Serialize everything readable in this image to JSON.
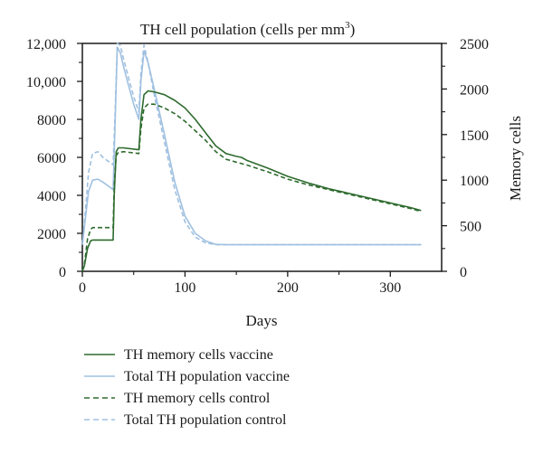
{
  "chart_data": {
    "type": "line",
    "title": "TH cell population (cells per mm",
    "title_superscript": "3",
    "title_suffix": ")",
    "xlabel": "Days",
    "ylabel_left": "",
    "ylabel_right": "Memory cells",
    "xlim": [
      0,
      350
    ],
    "ylim_left": [
      0,
      12000
    ],
    "ylim_right": [
      0,
      2500
    ],
    "x_ticks": [
      0,
      100,
      200,
      300
    ],
    "x_tick_labels": [
      "0",
      "100",
      "200",
      "300"
    ],
    "y_left_ticks": [
      0,
      2000,
      4000,
      6000,
      8000,
      10000,
      12000
    ],
    "y_left_tick_labels": [
      "0",
      "2000",
      "4000",
      "6000",
      "8000",
      "10,000",
      "12,000"
    ],
    "y_right_ticks": [
      0,
      500,
      1000,
      1500,
      2000,
      2500
    ],
    "y_right_tick_labels": [
      "0",
      "500",
      "1000",
      "1500",
      "2000",
      "2500"
    ],
    "grid": false,
    "legend_position": "bottom",
    "series": [
      {
        "name": "TH memory cells vaccine",
        "axis": "left",
        "color": "#2e6b2e",
        "dash": "solid",
        "x": [
          0,
          2,
          5,
          8,
          10,
          30,
          31,
          33,
          35,
          40,
          55,
          57,
          60,
          64,
          70,
          80,
          90,
          100,
          110,
          120,
          130,
          140,
          150,
          155,
          160,
          180,
          200,
          220,
          240,
          260,
          280,
          300,
          320,
          330
        ],
        "y": [
          0,
          300,
          1200,
          1600,
          1650,
          1650,
          4000,
          6300,
          6500,
          6500,
          6400,
          8000,
          9300,
          9500,
          9450,
          9300,
          9000,
          8600,
          8000,
          7300,
          6600,
          6200,
          6050,
          6000,
          5850,
          5450,
          5000,
          4650,
          4350,
          4100,
          3850,
          3600,
          3350,
          3200
        ]
      },
      {
        "name": "Total TH population vaccine",
        "axis": "left",
        "color": "#9fc0e0",
        "dash": "solid",
        "x": [
          0,
          3,
          6,
          10,
          15,
          20,
          25,
          30,
          32,
          34,
          37,
          40,
          45,
          50,
          55,
          57,
          60,
          64,
          70,
          80,
          90,
          100,
          110,
          120,
          130,
          140,
          150,
          200,
          250,
          300,
          330
        ],
        "y": [
          1400,
          2800,
          4200,
          4800,
          4850,
          4700,
          4500,
          4300,
          8000,
          11800,
          11500,
          10800,
          9800,
          8800,
          8000,
          10000,
          11600,
          11000,
          9600,
          7200,
          4700,
          2900,
          2000,
          1600,
          1420,
          1400,
          1400,
          1400,
          1400,
          1400,
          1400
        ]
      },
      {
        "name": "TH memory cells control",
        "axis": "left",
        "color": "#2e6b2e",
        "dash": "dashed",
        "x": [
          0,
          2,
          5,
          8,
          10,
          30,
          31,
          33,
          35,
          40,
          55,
          57,
          60,
          64,
          70,
          80,
          90,
          100,
          110,
          120,
          130,
          140,
          150,
          160,
          180,
          200,
          220,
          240,
          260,
          280,
          300,
          320,
          330
        ],
        "y": [
          0,
          400,
          1700,
          2200,
          2300,
          2300,
          4500,
          6100,
          6250,
          6300,
          6200,
          7500,
          8600,
          8800,
          8800,
          8600,
          8300,
          7900,
          7400,
          6900,
          6300,
          5900,
          5750,
          5600,
          5250,
          4850,
          4550,
          4300,
          4050,
          3800,
          3550,
          3300,
          3150
        ]
      },
      {
        "name": "Total TH population control",
        "axis": "left",
        "color": "#9fc0e0",
        "dash": "dashed",
        "x": [
          0,
          3,
          6,
          10,
          15,
          20,
          25,
          30,
          32,
          34,
          37,
          40,
          45,
          50,
          55,
          57,
          60,
          64,
          70,
          80,
          90,
          100,
          110,
          120,
          130,
          140,
          150,
          200,
          250,
          300,
          330
        ],
        "y": [
          1400,
          3200,
          5200,
          6200,
          6300,
          6000,
          5800,
          5600,
          8500,
          12000,
          11900,
          11200,
          10200,
          9200,
          8400,
          10400,
          11900,
          11000,
          9300,
          6800,
          4300,
          2600,
          1800,
          1500,
          1400,
          1400,
          1400,
          1400,
          1400,
          1400,
          1400
        ]
      }
    ]
  }
}
